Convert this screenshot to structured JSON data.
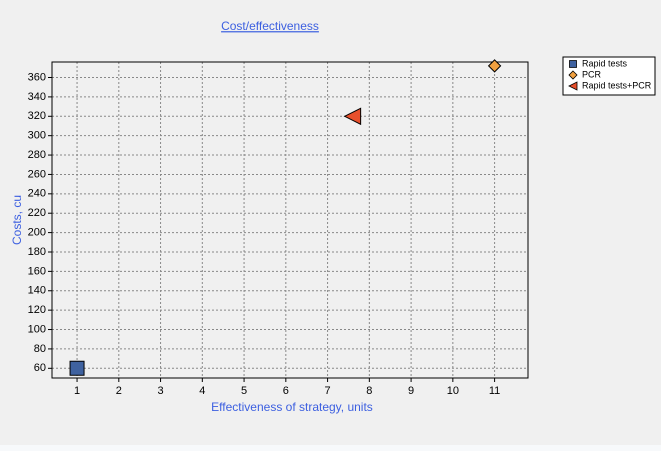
{
  "chart_data": {
    "type": "scatter",
    "title": "Cost/effectiveness",
    "x_label": "Effectiveness of strategy, units",
    "y_label": "Costs, cu",
    "xlim": [
      0.4,
      11.8
    ],
    "xticks": [
      1,
      2,
      3,
      4,
      5,
      6,
      7,
      8,
      9,
      10,
      11
    ],
    "ylim": [
      50,
      376
    ],
    "yticks": [
      60,
      80,
      100,
      120,
      140,
      160,
      180,
      200,
      220,
      240,
      260,
      280,
      300,
      320,
      340,
      360
    ],
    "grid": true,
    "legend": "outside right",
    "series": [
      {
        "name": "Rapid tests",
        "color": "#3f62a0",
        "marker": "square",
        "x": [
          1
        ],
        "y": [
          60
        ]
      },
      {
        "name": "PCR",
        "color": "#f0a040",
        "marker": "diamond",
        "x": [
          11
        ],
        "y": [
          372
        ]
      },
      {
        "name": "Rapid tests+PCR",
        "color": "#e8502c",
        "marker": "triangle-left",
        "x": [
          7.6
        ],
        "y": [
          320
        ]
      }
    ]
  }
}
